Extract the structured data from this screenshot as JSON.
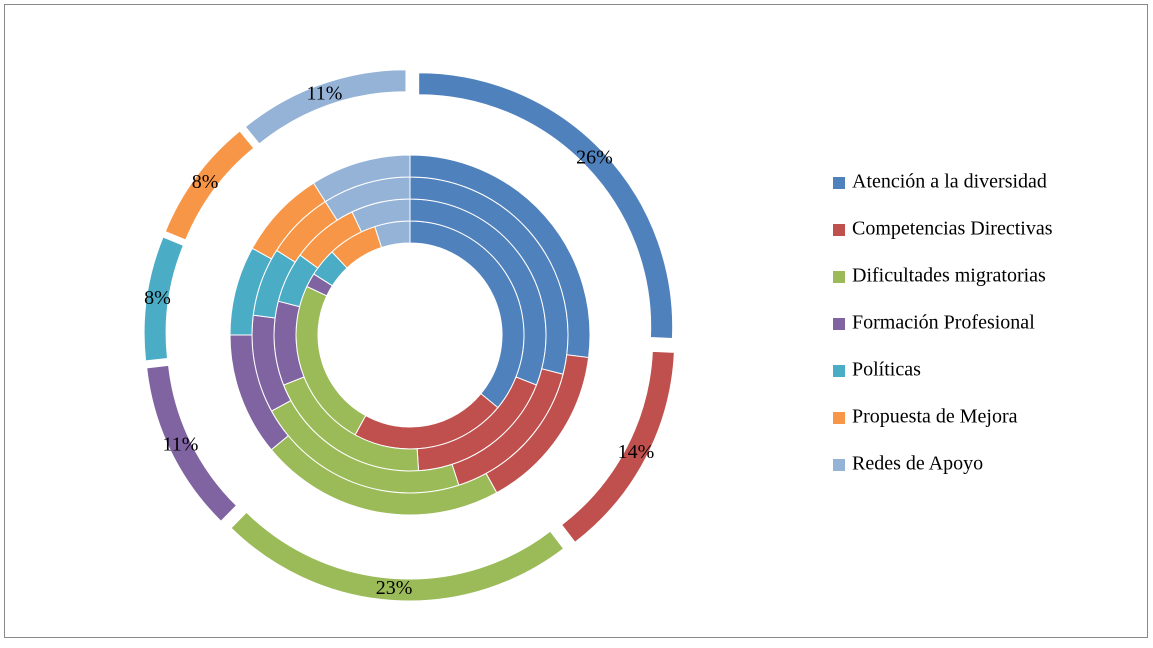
{
  "chart_data": {
    "type": "doughnut",
    "categories": [
      "Atención a la diversidad",
      "Competencias Directivas",
      "Dificultades migratorias",
      "Formación Profesional",
      "Políticas",
      "Propuesta de Mejora",
      "Redes de Apoyo"
    ],
    "colors": [
      "#4f81bd",
      "#c0504d",
      "#9bbb59",
      "#8064a2",
      "#4bacc6",
      "#f79646",
      "#95b3d7"
    ],
    "rings": [
      {
        "values": [
          36,
          22,
          24,
          2,
          4,
          7,
          5
        ]
      },
      {
        "values": [
          31,
          18,
          20,
          10,
          6,
          8,
          7
        ]
      },
      {
        "values": [
          29,
          16,
          22,
          10,
          7,
          7,
          9
        ]
      },
      {
        "values": [
          27,
          15,
          22,
          11,
          8,
          8,
          9
        ]
      },
      {
        "values": [
          26,
          14,
          23,
          11,
          8,
          8,
          11
        ],
        "value_labels": [
          "26%",
          "14%",
          "23%",
          "11%",
          "8%",
          "8%",
          "11%"
        ],
        "exploded": true
      }
    ],
    "legend": "right"
  }
}
